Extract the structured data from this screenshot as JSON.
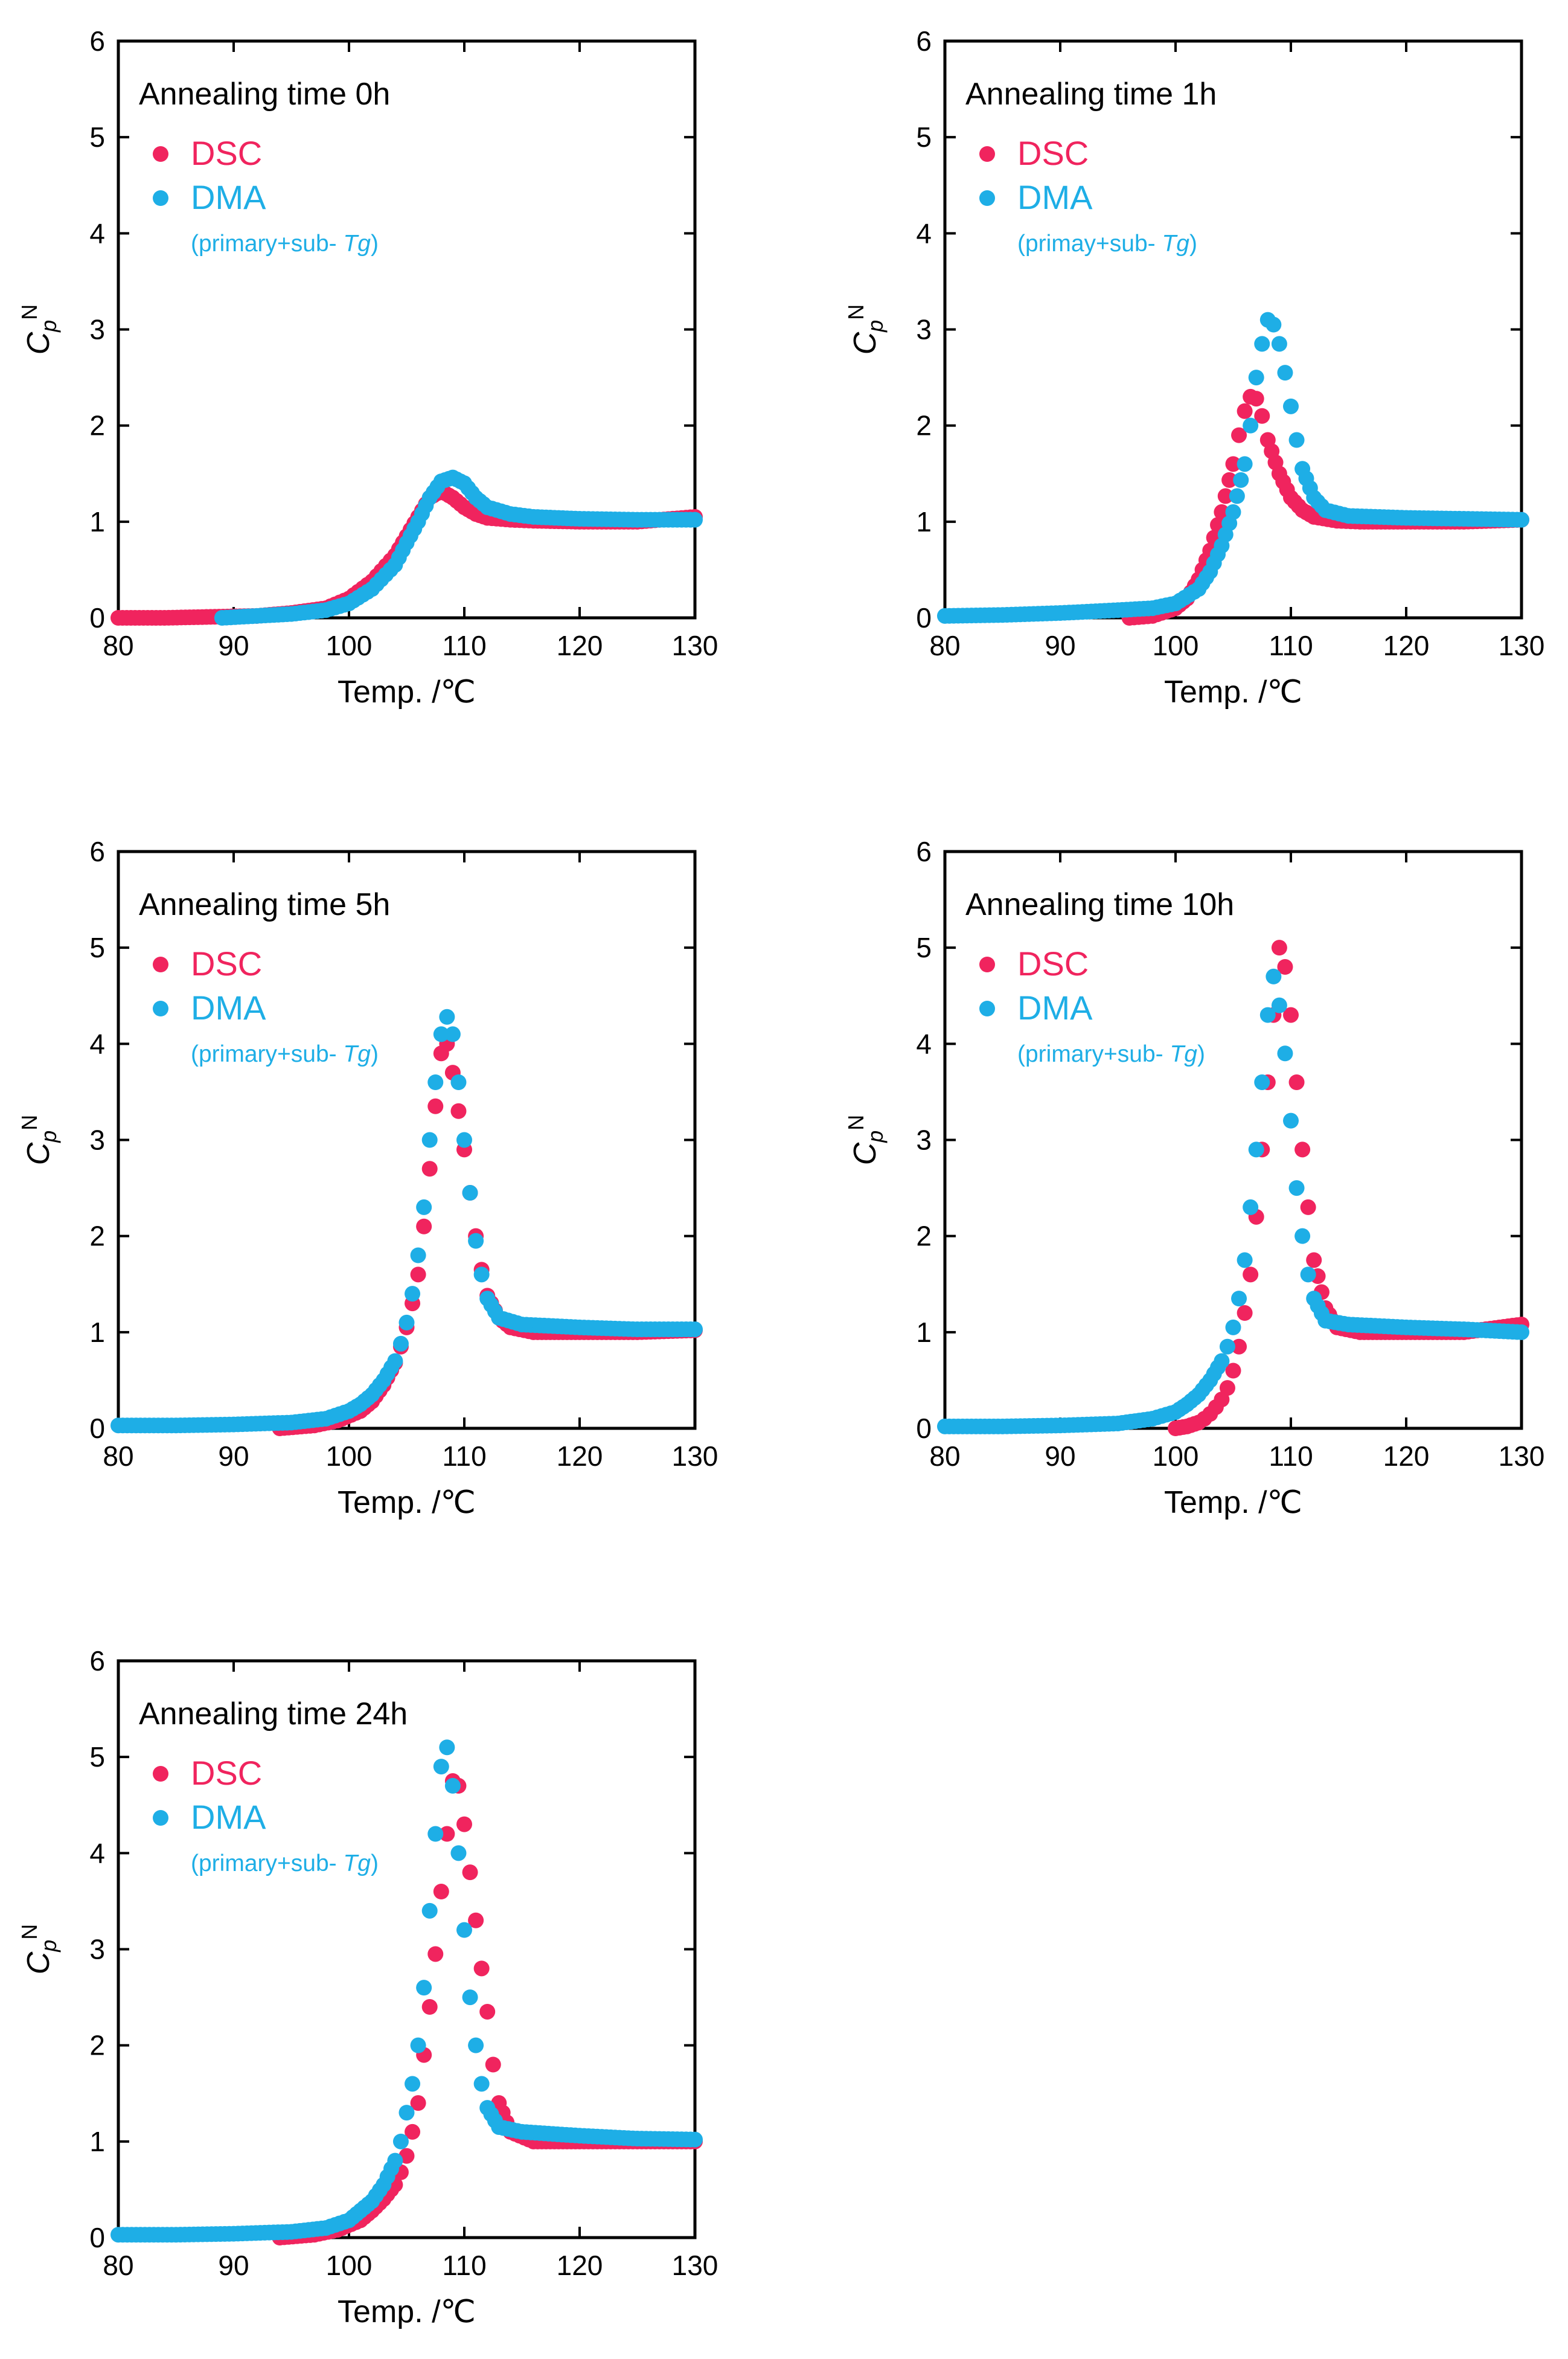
{
  "colors": {
    "DSC": "#f0245e",
    "DMA": "#1eaee6",
    "axis": "#000000"
  },
  "chart_data": [
    {
      "type": "scatter",
      "title": "Annealing time 0h",
      "xlabel": "Temp. /℃",
      "ylabel": "C",
      "ylabel_sub": "p",
      "ylabel_sup": "N",
      "xlim": [
        80,
        130
      ],
      "ylim": [
        0,
        6
      ],
      "xticks": [
        80,
        90,
        100,
        110,
        120,
        130
      ],
      "yticks": [
        0,
        1,
        2,
        3,
        4,
        5,
        6
      ],
      "grid": false,
      "legend": "top-left",
      "legend_note": "(primary+sub- ",
      "legend_note_italic": "Tg",
      "legend_note_close": ")",
      "series": [
        {
          "name": "DSC",
          "color": "#f0245e",
          "x": [
            80,
            84,
            88,
            92,
            95,
            98,
            100,
            102,
            104,
            105,
            106,
            107,
            108,
            109,
            110,
            111,
            112,
            114,
            116,
            120,
            125,
            130
          ],
          "y": [
            0,
            0,
            0.01,
            0.02,
            0.05,
            0.1,
            0.2,
            0.38,
            0.65,
            0.85,
            1.05,
            1.25,
            1.32,
            1.25,
            1.15,
            1.08,
            1.04,
            1.02,
            1.01,
            1.0,
            1.0,
            1.05
          ]
        },
        {
          "name": "DMA",
          "color": "#1eaee6",
          "x": [
            89,
            92,
            95,
            98,
            100,
            102,
            104,
            105,
            106,
            107,
            108,
            109,
            110,
            111,
            112,
            114,
            116,
            120,
            125,
            130
          ],
          "y": [
            0,
            0.02,
            0.04,
            0.08,
            0.15,
            0.3,
            0.55,
            0.78,
            1.0,
            1.25,
            1.42,
            1.46,
            1.4,
            1.25,
            1.15,
            1.08,
            1.05,
            1.03,
            1.02,
            1.02
          ]
        }
      ]
    },
    {
      "type": "scatter",
      "title": "Annealing time 1h",
      "xlabel": "Temp. /℃",
      "ylabel": "C",
      "ylabel_sub": "p",
      "ylabel_sup": "N",
      "xlim": [
        80,
        130
      ],
      "ylim": [
        0,
        6
      ],
      "xticks": [
        80,
        90,
        100,
        110,
        120,
        130
      ],
      "yticks": [
        0,
        1,
        2,
        3,
        4,
        5,
        6
      ],
      "grid": false,
      "legend": "top-left",
      "legend_note": "(primay+sub- ",
      "legend_note_italic": "Tg",
      "legend_note_close": ")",
      "series": [
        {
          "name": "DSC",
          "color": "#f0245e",
          "x": [
            96,
            98,
            100,
            101,
            102,
            103,
            104,
            105,
            105.5,
            106,
            106.5,
            107,
            107.5,
            108,
            109,
            110,
            111,
            112,
            114,
            116,
            120,
            125,
            130
          ],
          "y": [
            0,
            0.02,
            0.1,
            0.2,
            0.4,
            0.7,
            1.1,
            1.6,
            1.9,
            2.15,
            2.3,
            2.28,
            2.1,
            1.85,
            1.5,
            1.25,
            1.12,
            1.05,
            1.01,
            1.0,
            1.0,
            1.0,
            1.02
          ]
        },
        {
          "name": "DMA",
          "color": "#1eaee6",
          "x": [
            80,
            85,
            90,
            95,
            98,
            100,
            102,
            103,
            104,
            105,
            106,
            106.5,
            107,
            107.5,
            108,
            108.5,
            109,
            109.5,
            110,
            110.5,
            111,
            112,
            113,
            115,
            120,
            125,
            130
          ],
          "y": [
            0.02,
            0.03,
            0.05,
            0.08,
            0.1,
            0.15,
            0.3,
            0.48,
            0.75,
            1.1,
            1.6,
            2.0,
            2.5,
            2.85,
            3.1,
            3.05,
            2.85,
            2.55,
            2.2,
            1.85,
            1.55,
            1.25,
            1.12,
            1.06,
            1.04,
            1.03,
            1.02
          ]
        }
      ]
    },
    {
      "type": "scatter",
      "title": "Annealing time 5h",
      "xlabel": "Temp. /℃",
      "ylabel": "C",
      "ylabel_sub": "p",
      "ylabel_sup": "N",
      "xlim": [
        80,
        130
      ],
      "ylim": [
        0,
        6
      ],
      "xticks": [
        80,
        90,
        100,
        110,
        120,
        130
      ],
      "yticks": [
        0,
        1,
        2,
        3,
        4,
        5,
        6
      ],
      "grid": false,
      "legend": "top-left",
      "legend_note": "(primary+sub- ",
      "legend_note_italic": "Tg",
      "legend_note_close": ")",
      "series": [
        {
          "name": "DSC",
          "color": "#f0245e",
          "x": [
            94,
            97,
            99,
            101,
            102,
            103,
            104,
            104.5,
            105,
            105.5,
            106,
            106.5,
            107,
            107.5,
            108,
            108.5,
            109,
            109.5,
            110,
            110.5,
            111,
            111.5,
            112,
            113,
            114,
            116,
            120,
            125,
            130
          ],
          "y": [
            0,
            0.03,
            0.08,
            0.18,
            0.28,
            0.45,
            0.68,
            0.85,
            1.05,
            1.3,
            1.6,
            2.1,
            2.7,
            3.35,
            3.9,
            4.0,
            3.7,
            3.3,
            2.9,
            2.45,
            2.0,
            1.65,
            1.38,
            1.15,
            1.05,
            1.0,
            1.0,
            1.0,
            1.02
          ]
        },
        {
          "name": "DMA",
          "color": "#1eaee6",
          "x": [
            80,
            85,
            90,
            95,
            98,
            100,
            101,
            102,
            103,
            104,
            104.5,
            105,
            105.5,
            106,
            106.5,
            107,
            107.5,
            108,
            108.5,
            109,
            109.5,
            110,
            110.5,
            111,
            111.5,
            112,
            113,
            115,
            120,
            125,
            130
          ],
          "y": [
            0.03,
            0.03,
            0.04,
            0.06,
            0.1,
            0.18,
            0.25,
            0.35,
            0.5,
            0.7,
            0.88,
            1.1,
            1.4,
            1.8,
            2.3,
            3.0,
            3.6,
            4.1,
            4.28,
            4.1,
            3.6,
            3.0,
            2.45,
            1.95,
            1.6,
            1.35,
            1.15,
            1.08,
            1.05,
            1.03,
            1.03
          ]
        }
      ]
    },
    {
      "type": "scatter",
      "title": "Annealing time 10h",
      "xlabel": "Temp. /℃",
      "ylabel": "C",
      "ylabel_sub": "p",
      "ylabel_sup": "N",
      "xlim": [
        80,
        130
      ],
      "ylim": [
        0,
        6
      ],
      "xticks": [
        80,
        90,
        100,
        110,
        120,
        130
      ],
      "yticks": [
        0,
        1,
        2,
        3,
        4,
        5,
        6
      ],
      "grid": false,
      "legend": "top-left",
      "legend_note": "(primary+sub- ",
      "legend_note_italic": "Tg",
      "legend_note_close": ")",
      "series": [
        {
          "name": "DSC",
          "color": "#f0245e",
          "x": [
            100,
            101,
            102,
            102.5,
            103,
            103.5,
            104,
            104.5,
            105,
            105.5,
            106,
            106.5,
            107,
            107.5,
            108,
            108.5,
            109,
            109.5,
            110,
            110.5,
            111,
            111.5,
            112,
            113,
            114,
            116,
            120,
            125,
            130
          ],
          "y": [
            0,
            0.02,
            0.06,
            0.1,
            0.15,
            0.22,
            0.3,
            0.42,
            0.6,
            0.85,
            1.2,
            1.6,
            2.2,
            2.9,
            3.6,
            4.3,
            5.0,
            4.8,
            4.3,
            3.6,
            2.9,
            2.3,
            1.75,
            1.25,
            1.05,
            1.0,
            1.0,
            1.0,
            1.08
          ]
        },
        {
          "name": "DMA",
          "color": "#1eaee6",
          "x": [
            80,
            85,
            90,
            95,
            98,
            100,
            101,
            102,
            103,
            104,
            104.5,
            105,
            105.5,
            106,
            106.5,
            107,
            107.5,
            108,
            108.5,
            109,
            109.5,
            110,
            110.5,
            111,
            111.5,
            112,
            113,
            115,
            120,
            125,
            130
          ],
          "y": [
            0.02,
            0.02,
            0.03,
            0.05,
            0.1,
            0.17,
            0.25,
            0.35,
            0.5,
            0.7,
            0.85,
            1.05,
            1.35,
            1.75,
            2.3,
            2.9,
            3.6,
            4.3,
            4.7,
            4.4,
            3.9,
            3.2,
            2.5,
            2.0,
            1.6,
            1.35,
            1.12,
            1.08,
            1.05,
            1.03,
            1.0
          ]
        }
      ]
    },
    {
      "type": "scatter",
      "title": "Annealing time 24h",
      "xlabel": "Temp. /℃",
      "ylabel": "C",
      "ylabel_sub": "p",
      "ylabel_sup": "N",
      "xlim": [
        80,
        130
      ],
      "ylim": [
        0,
        6
      ],
      "xticks": [
        80,
        90,
        100,
        110,
        120,
        130
      ],
      "yticks": [
        0,
        1,
        2,
        3,
        4,
        5,
        6
      ],
      "grid": false,
      "legend": "top-left",
      "legend_note": "(primary+sub- ",
      "legend_note_italic": "Tg",
      "legend_note_close": ")",
      "series": [
        {
          "name": "DSC",
          "color": "#f0245e",
          "x": [
            94,
            97,
            99,
            101,
            102,
            103,
            104,
            104.5,
            105,
            105.5,
            106,
            106.5,
            107,
            107.5,
            108,
            108.5,
            109,
            109.5,
            110,
            110.5,
            111,
            111.5,
            112,
            112.5,
            113,
            114,
            116,
            120,
            125,
            130
          ],
          "y": [
            0,
            0.03,
            0.08,
            0.18,
            0.28,
            0.4,
            0.55,
            0.68,
            0.85,
            1.1,
            1.4,
            1.9,
            2.4,
            2.95,
            3.6,
            4.2,
            4.75,
            4.7,
            4.3,
            3.8,
            3.3,
            2.8,
            2.35,
            1.8,
            1.4,
            1.1,
            1.0,
            1.0,
            1.0,
            1.0
          ]
        },
        {
          "name": "DMA",
          "color": "#1eaee6",
          "x": [
            80,
            85,
            90,
            95,
            98,
            100,
            101,
            102,
            103,
            104,
            104.5,
            105,
            105.5,
            106,
            106.5,
            107,
            107.5,
            108,
            108.5,
            109,
            109.5,
            110,
            110.5,
            111,
            111.5,
            112,
            113,
            115,
            120,
            125,
            130
          ],
          "y": [
            0.03,
            0.03,
            0.04,
            0.06,
            0.1,
            0.18,
            0.28,
            0.38,
            0.55,
            0.8,
            1.0,
            1.3,
            1.6,
            2.0,
            2.6,
            3.4,
            4.2,
            4.9,
            5.1,
            4.7,
            4.0,
            3.2,
            2.5,
            2.0,
            1.6,
            1.35,
            1.15,
            1.1,
            1.06,
            1.03,
            1.02
          ]
        }
      ]
    }
  ]
}
